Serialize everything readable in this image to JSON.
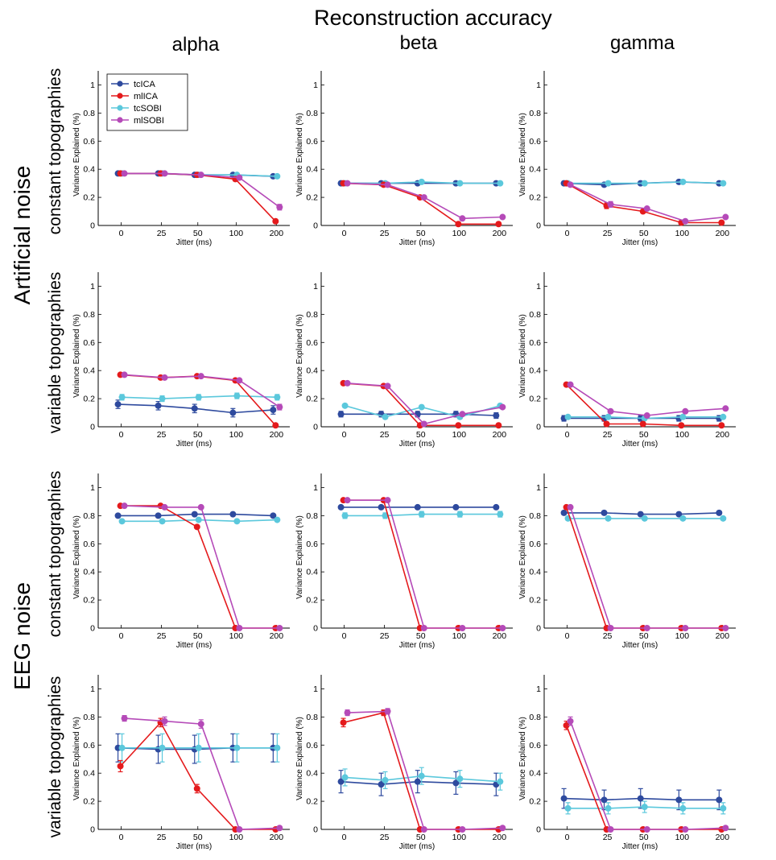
{
  "figure": {
    "title": "Reconstruction accuracy",
    "columns": [
      "alpha",
      "beta",
      "gamma"
    ],
    "groups": [
      "Artificial noise",
      "EEG noise"
    ],
    "row_labels": [
      "constant topographies",
      "variable topographies",
      "constant topographies",
      "variable topographies"
    ]
  },
  "legend": [
    "tcICA",
    "mlICA",
    "tcSOBI",
    "mlSOBI"
  ],
  "colors": {
    "tcICA": "#2e4a9e",
    "mlICA": "#e41a1c",
    "tcSOBI": "#5bc8dc",
    "mlSOBI": "#b54ab8",
    "axis": "#000000"
  },
  "chart_data": [
    {
      "type": "line",
      "row": 0,
      "col": 0,
      "title": "",
      "xlabel": "Jitter (ms)",
      "ylabel": "Variance Explained (%)",
      "categories": [
        "0",
        "25",
        "50",
        "100",
        "200"
      ],
      "ylim": [
        0,
        1.1
      ],
      "yticks": [
        "0",
        "0.2",
        "0.4",
        "0.6",
        "0.8",
        "1"
      ],
      "series": [
        {
          "name": "tcICA",
          "values": [
            0.37,
            0.37,
            0.36,
            0.36,
            0.35
          ],
          "err": [
            0.01,
            0.01,
            0.01,
            0.01,
            0.01
          ]
        },
        {
          "name": "mlICA",
          "values": [
            0.37,
            0.37,
            0.36,
            0.33,
            0.03
          ],
          "err": [
            0.01,
            0.01,
            0.01,
            0.01,
            0.01
          ]
        },
        {
          "name": "tcSOBI",
          "values": [
            0.37,
            0.37,
            0.36,
            0.36,
            0.35
          ],
          "err": [
            0.01,
            0.01,
            0.01,
            0.01,
            0.01
          ]
        },
        {
          "name": "mlSOBI",
          "values": [
            0.37,
            0.37,
            0.36,
            0.34,
            0.13
          ],
          "err": [
            0.01,
            0.01,
            0.01,
            0.01,
            0.02
          ]
        }
      ]
    },
    {
      "type": "line",
      "row": 0,
      "col": 1,
      "title": "",
      "xlabel": "Jitter (ms)",
      "ylabel": "Variance Explained (%)",
      "categories": [
        "0",
        "25",
        "50",
        "100",
        "200"
      ],
      "ylim": [
        0,
        1.1
      ],
      "yticks": [
        "0",
        "0.2",
        "0.4",
        "0.6",
        "0.8",
        "1"
      ],
      "series": [
        {
          "name": "tcICA",
          "values": [
            0.3,
            0.3,
            0.3,
            0.3,
            0.3
          ],
          "err": [
            0.01,
            0.01,
            0.01,
            0.01,
            0.01
          ]
        },
        {
          "name": "mlICA",
          "values": [
            0.3,
            0.29,
            0.2,
            0.01,
            0.01
          ],
          "err": [
            0.01,
            0.01,
            0.01,
            0.01,
            0.01
          ]
        },
        {
          "name": "tcSOBI",
          "values": [
            0.3,
            0.3,
            0.31,
            0.3,
            0.3
          ],
          "err": [
            0.01,
            0.01,
            0.01,
            0.01,
            0.01
          ]
        },
        {
          "name": "mlSOBI",
          "values": [
            0.3,
            0.29,
            0.2,
            0.05,
            0.06
          ],
          "err": [
            0.01,
            0.01,
            0.01,
            0.01,
            0.01
          ]
        }
      ]
    },
    {
      "type": "line",
      "row": 0,
      "col": 2,
      "title": "",
      "xlabel": "Jitter (ms)",
      "ylabel": "Variance Explained (%)",
      "categories": [
        "0",
        "25",
        "50",
        "100",
        "200"
      ],
      "ylim": [
        0,
        1.1
      ],
      "yticks": [
        "0",
        "0.2",
        "0.4",
        "0.6",
        "0.8",
        "1"
      ],
      "series": [
        {
          "name": "tcICA",
          "values": [
            0.3,
            0.29,
            0.3,
            0.31,
            0.3
          ],
          "err": [
            0.01,
            0.01,
            0.01,
            0.01,
            0.01
          ]
        },
        {
          "name": "mlICA",
          "values": [
            0.3,
            0.14,
            0.1,
            0.02,
            0.02
          ],
          "err": [
            0.01,
            0.02,
            0.01,
            0.01,
            0.01
          ]
        },
        {
          "name": "tcSOBI",
          "values": [
            0.3,
            0.3,
            0.3,
            0.31,
            0.3
          ],
          "err": [
            0.01,
            0.01,
            0.01,
            0.01,
            0.01
          ]
        },
        {
          "name": "mlSOBI",
          "values": [
            0.29,
            0.15,
            0.12,
            0.03,
            0.06
          ],
          "err": [
            0.01,
            0.02,
            0.01,
            0.01,
            0.01
          ]
        }
      ]
    },
    {
      "type": "line",
      "row": 1,
      "col": 0,
      "title": "",
      "xlabel": "Jitter (ms)",
      "ylabel": "Variance Explained (%)",
      "categories": [
        "0",
        "25",
        "50",
        "100",
        "200"
      ],
      "ylim": [
        0,
        1.1
      ],
      "yticks": [
        "0",
        "0.2",
        "0.4",
        "0.6",
        "0.8",
        "1"
      ],
      "series": [
        {
          "name": "tcICA",
          "values": [
            0.16,
            0.15,
            0.13,
            0.1,
            0.12
          ],
          "err": [
            0.03,
            0.03,
            0.03,
            0.03,
            0.03
          ]
        },
        {
          "name": "mlICA",
          "values": [
            0.37,
            0.35,
            0.36,
            0.33,
            0.01
          ],
          "err": [
            0.01,
            0.01,
            0.01,
            0.01,
            0.01
          ]
        },
        {
          "name": "tcSOBI",
          "values": [
            0.21,
            0.2,
            0.21,
            0.22,
            0.21
          ],
          "err": [
            0.02,
            0.02,
            0.02,
            0.02,
            0.02
          ]
        },
        {
          "name": "mlSOBI",
          "values": [
            0.37,
            0.35,
            0.36,
            0.33,
            0.14
          ],
          "err": [
            0.01,
            0.01,
            0.01,
            0.01,
            0.02
          ]
        }
      ]
    },
    {
      "type": "line",
      "row": 1,
      "col": 1,
      "title": "",
      "xlabel": "Jitter (ms)",
      "ylabel": "Variance Explained (%)",
      "categories": [
        "0",
        "25",
        "50",
        "100",
        "200"
      ],
      "ylim": [
        0,
        1.1
      ],
      "yticks": [
        "0",
        "0.2",
        "0.4",
        "0.6",
        "0.8",
        "1"
      ],
      "series": [
        {
          "name": "tcICA",
          "values": [
            0.09,
            0.09,
            0.09,
            0.09,
            0.08
          ],
          "err": [
            0.02,
            0.02,
            0.02,
            0.02,
            0.02
          ]
        },
        {
          "name": "mlICA",
          "values": [
            0.31,
            0.29,
            0.01,
            0.01,
            0.01
          ],
          "err": [
            0.01,
            0.01,
            0.01,
            0.01,
            0.01
          ]
        },
        {
          "name": "tcSOBI",
          "values": [
            0.15,
            0.07,
            0.14,
            0.07,
            0.15
          ],
          "err": [
            0.01,
            0.01,
            0.01,
            0.01,
            0.01
          ]
        },
        {
          "name": "mlSOBI",
          "values": [
            0.31,
            0.29,
            0.02,
            0.09,
            0.14
          ],
          "err": [
            0.01,
            0.01,
            0.01,
            0.01,
            0.01
          ]
        }
      ]
    },
    {
      "type": "line",
      "row": 1,
      "col": 2,
      "title": "",
      "xlabel": "Jitter (ms)",
      "ylabel": "Variance Explained (%)",
      "categories": [
        "0",
        "25",
        "50",
        "100",
        "200"
      ],
      "ylim": [
        0,
        1.1
      ],
      "yticks": [
        "0",
        "0.2",
        "0.4",
        "0.6",
        "0.8",
        "1"
      ],
      "series": [
        {
          "name": "tcICA",
          "values": [
            0.06,
            0.06,
            0.06,
            0.06,
            0.06
          ],
          "err": [
            0.02,
            0.02,
            0.02,
            0.02,
            0.02
          ]
        },
        {
          "name": "mlICA",
          "values": [
            0.3,
            0.02,
            0.02,
            0.01,
            0.01
          ],
          "err": [
            0.01,
            0.01,
            0.01,
            0.01,
            0.01
          ]
        },
        {
          "name": "tcSOBI",
          "values": [
            0.07,
            0.07,
            0.06,
            0.07,
            0.07
          ],
          "err": [
            0.01,
            0.01,
            0.01,
            0.01,
            0.01
          ]
        },
        {
          "name": "mlSOBI",
          "values": [
            0.3,
            0.11,
            0.08,
            0.11,
            0.13
          ],
          "err": [
            0.01,
            0.01,
            0.01,
            0.01,
            0.01
          ]
        }
      ]
    },
    {
      "type": "line",
      "row": 2,
      "col": 0,
      "title": "",
      "xlabel": "Jitter (ms)",
      "ylabel": "Variance Explained (%)",
      "categories": [
        "0",
        "25",
        "50",
        "100",
        "200"
      ],
      "ylim": [
        0,
        1.1
      ],
      "yticks": [
        "0",
        "0.2",
        "0.4",
        "0.6",
        "0.8",
        "1"
      ],
      "series": [
        {
          "name": "tcICA",
          "values": [
            0.8,
            0.8,
            0.81,
            0.81,
            0.8
          ],
          "err": [
            0.01,
            0.01,
            0.01,
            0.01,
            0.01
          ]
        },
        {
          "name": "mlICA",
          "values": [
            0.87,
            0.87,
            0.72,
            0.0,
            0.0
          ],
          "err": [
            0.01,
            0.01,
            0.01,
            0.01,
            0.01
          ]
        },
        {
          "name": "tcSOBI",
          "values": [
            0.76,
            0.76,
            0.77,
            0.76,
            0.77
          ],
          "err": [
            0.01,
            0.01,
            0.01,
            0.01,
            0.01
          ]
        },
        {
          "name": "mlSOBI",
          "values": [
            0.87,
            0.86,
            0.86,
            0.0,
            0.0
          ],
          "err": [
            0.01,
            0.01,
            0.01,
            0.01,
            0.01
          ]
        }
      ]
    },
    {
      "type": "line",
      "row": 2,
      "col": 1,
      "title": "",
      "xlabel": "Jitter (ms)",
      "ylabel": "Variance Explained (%)",
      "categories": [
        "0",
        "25",
        "50",
        "100",
        "200"
      ],
      "ylim": [
        0,
        1.1
      ],
      "yticks": [
        "0",
        "0.2",
        "0.4",
        "0.6",
        "0.8",
        "1"
      ],
      "series": [
        {
          "name": "tcICA",
          "values": [
            0.86,
            0.86,
            0.86,
            0.86,
            0.86
          ],
          "err": [
            0.01,
            0.01,
            0.01,
            0.01,
            0.01
          ]
        },
        {
          "name": "mlICA",
          "values": [
            0.91,
            0.91,
            0.0,
            0.0,
            0.0
          ],
          "err": [
            0.01,
            0.01,
            0.01,
            0.01,
            0.01
          ]
        },
        {
          "name": "tcSOBI",
          "values": [
            0.8,
            0.8,
            0.81,
            0.81,
            0.81
          ],
          "err": [
            0.02,
            0.02,
            0.02,
            0.02,
            0.02
          ]
        },
        {
          "name": "mlSOBI",
          "values": [
            0.91,
            0.91,
            0.0,
            0.0,
            0.0
          ],
          "err": [
            0.01,
            0.01,
            0.01,
            0.01,
            0.01
          ]
        }
      ]
    },
    {
      "type": "line",
      "row": 2,
      "col": 2,
      "title": "",
      "xlabel": "Jitter (ms)",
      "ylabel": "Variance Explained (%)",
      "categories": [
        "0",
        "25",
        "50",
        "100",
        "200"
      ],
      "ylim": [
        0,
        1.1
      ],
      "yticks": [
        "0",
        "0.2",
        "0.4",
        "0.6",
        "0.8",
        "1"
      ],
      "series": [
        {
          "name": "tcICA",
          "values": [
            0.82,
            0.82,
            0.81,
            0.81,
            0.82
          ],
          "err": [
            0.01,
            0.01,
            0.01,
            0.01,
            0.01
          ]
        },
        {
          "name": "mlICA",
          "values": [
            0.86,
            0.0,
            0.0,
            0.0,
            0.0
          ],
          "err": [
            0.01,
            0.01,
            0.01,
            0.01,
            0.01
          ]
        },
        {
          "name": "tcSOBI",
          "values": [
            0.78,
            0.78,
            0.78,
            0.78,
            0.78
          ],
          "err": [
            0.01,
            0.01,
            0.01,
            0.01,
            0.01
          ]
        },
        {
          "name": "mlSOBI",
          "values": [
            0.86,
            0.0,
            0.0,
            0.0,
            0.0
          ],
          "err": [
            0.01,
            0.01,
            0.01,
            0.01,
            0.01
          ]
        }
      ]
    },
    {
      "type": "line",
      "row": 3,
      "col": 0,
      "title": "",
      "xlabel": "Jitter (ms)",
      "ylabel": "Variance Explained (%)",
      "categories": [
        "0",
        "25",
        "50",
        "100",
        "200"
      ],
      "ylim": [
        0,
        1.1
      ],
      "yticks": [
        "0",
        "0.2",
        "0.4",
        "0.6",
        "0.8",
        "1"
      ],
      "series": [
        {
          "name": "tcICA",
          "values": [
            0.58,
            0.57,
            0.57,
            0.58,
            0.58
          ],
          "err": [
            0.1,
            0.1,
            0.1,
            0.1,
            0.1
          ]
        },
        {
          "name": "mlICA",
          "values": [
            0.45,
            0.76,
            0.29,
            0.0,
            0.0
          ],
          "err": [
            0.04,
            0.03,
            0.03,
            0.01,
            0.01
          ]
        },
        {
          "name": "tcSOBI",
          "values": [
            0.58,
            0.58,
            0.58,
            0.58,
            0.58
          ],
          "err": [
            0.1,
            0.1,
            0.1,
            0.1,
            0.1
          ]
        },
        {
          "name": "mlSOBI",
          "values": [
            0.79,
            0.77,
            0.75,
            0.0,
            0.01
          ],
          "err": [
            0.02,
            0.03,
            0.03,
            0.01,
            0.01
          ]
        }
      ]
    },
    {
      "type": "line",
      "row": 3,
      "col": 1,
      "title": "",
      "xlabel": "Jitter (ms)",
      "ylabel": "Variance Explained (%)",
      "categories": [
        "0",
        "25",
        "50",
        "100",
        "200"
      ],
      "ylim": [
        0,
        1.1
      ],
      "yticks": [
        "0",
        "0.2",
        "0.4",
        "0.6",
        "0.8",
        "1"
      ],
      "series": [
        {
          "name": "tcICA",
          "values": [
            0.34,
            0.32,
            0.34,
            0.33,
            0.32
          ],
          "err": [
            0.08,
            0.08,
            0.08,
            0.08,
            0.08
          ]
        },
        {
          "name": "mlICA",
          "values": [
            0.76,
            0.83,
            0.0,
            0.0,
            0.0
          ],
          "err": [
            0.03,
            0.02,
            0.01,
            0.01,
            0.01
          ]
        },
        {
          "name": "tcSOBI",
          "values": [
            0.37,
            0.35,
            0.38,
            0.36,
            0.34
          ],
          "err": [
            0.06,
            0.06,
            0.06,
            0.06,
            0.06
          ]
        },
        {
          "name": "mlSOBI",
          "values": [
            0.83,
            0.84,
            0.0,
            0.0,
            0.01
          ],
          "err": [
            0.02,
            0.02,
            0.01,
            0.01,
            0.01
          ]
        }
      ]
    },
    {
      "type": "line",
      "row": 3,
      "col": 2,
      "title": "",
      "xlabel": "Jitter (ms)",
      "ylabel": "Variance Explained (%)",
      "categories": [
        "0",
        "25",
        "50",
        "100",
        "200"
      ],
      "ylim": [
        0,
        1.1
      ],
      "yticks": [
        "0",
        "0.2",
        "0.4",
        "0.6",
        "0.8",
        "1"
      ],
      "series": [
        {
          "name": "tcICA",
          "values": [
            0.22,
            0.21,
            0.22,
            0.21,
            0.21
          ],
          "err": [
            0.07,
            0.07,
            0.07,
            0.07,
            0.07
          ]
        },
        {
          "name": "mlICA",
          "values": [
            0.74,
            0.0,
            0.0,
            0.0,
            0.0
          ],
          "err": [
            0.03,
            0.01,
            0.01,
            0.01,
            0.01
          ]
        },
        {
          "name": "tcSOBI",
          "values": [
            0.15,
            0.15,
            0.16,
            0.15,
            0.15
          ],
          "err": [
            0.04,
            0.04,
            0.04,
            0.04,
            0.04
          ]
        },
        {
          "name": "mlSOBI",
          "values": [
            0.77,
            0.0,
            0.0,
            0.0,
            0.01
          ],
          "err": [
            0.03,
            0.01,
            0.01,
            0.01,
            0.01
          ]
        }
      ]
    }
  ]
}
